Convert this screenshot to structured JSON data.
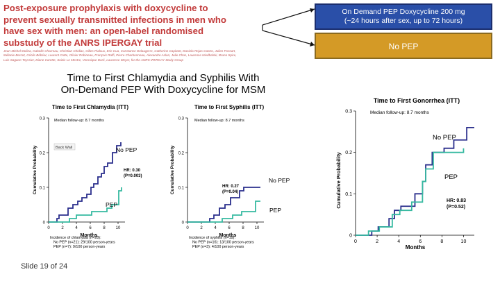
{
  "paper": {
    "title": "Post-exposure prophylaxis with doxycycline to prevent sexually transmitted infections in men who have sex with men: an open-label randomised substudy of the ANRS IPERGAY trial",
    "authors": "Jean-Michel Molina, Isabelle Charreau, Christian Chidiac, Gilles Pialoux, Eric Cua, Constance Delaugerre, Catherine Capitant, Daniela Rojas-Castro, Julien Fonsart, Mélanie Bercot, Cécile Bébéar, Laurent Cotte, Olivier Robineau, François Raffi, Pierre Charbonneau, Alexandre Aslan, Julie Chas, Laurence Niedbalski, Bruno Spire, Luis Sagaon-Teyssier, Diane Carette, Soizic Le Mestre, Veronique Doré, Laurence Meyer, for the ANRS IPERGAY Study Group"
  },
  "callouts": {
    "blue": [
      "On Demand PEP Doxycycline 200 mg",
      "(~24 hours after sex, up to 72 hours)"
    ],
    "gold": "No PEP"
  },
  "slide": {
    "title": [
      "Time to First Chlamydia and Syphilis With",
      "On-Demand PEP With Doxycycline for MSM"
    ],
    "footer": "Slide 19 of 24"
  },
  "colors": {
    "no_pep": "#2a2e8c",
    "pep": "#36b9a0",
    "title_red": "#c23a3a"
  },
  "chart_data": [
    {
      "type": "line",
      "title": "Time to First Chlamydia (ITT)",
      "subtitle": "Median follow-up: 8.7 months",
      "xlabel": "Months",
      "ylabel": "Cumulative Probability",
      "xlim": [
        0,
        11
      ],
      "ylim": [
        0,
        0.3
      ],
      "xticks": [
        "0",
        "2",
        "4",
        "6",
        "8",
        "10"
      ],
      "yticks": [
        "0",
        "0.1",
        "0.2",
        "0.3"
      ],
      "annotations": [
        "Back Wall"
      ],
      "hr_text": [
        "HR: 0.30",
        "(P=0.003)"
      ],
      "series": [
        {
          "name": "No PEP",
          "x": [
            0,
            1.2,
            1.5,
            2.2,
            2.8,
            3.5,
            4.2,
            4.8,
            5.5,
            6.1,
            6.5,
            7.1,
            7.6,
            8.0,
            8.5,
            9.2,
            9.8,
            10.4
          ],
          "y": [
            0,
            0.01,
            0.02,
            0.02,
            0.04,
            0.05,
            0.06,
            0.07,
            0.08,
            0.1,
            0.11,
            0.13,
            0.14,
            0.16,
            0.17,
            0.2,
            0.22,
            0.23
          ]
        },
        {
          "name": "PEP",
          "x": [
            0,
            2.2,
            3.0,
            4.0,
            5.5,
            6.2,
            8.0,
            8.4,
            9.1,
            10.1,
            10.5
          ],
          "y": [
            0,
            0,
            0.01,
            0.02,
            0.02,
            0.03,
            0.03,
            0.04,
            0.05,
            0.09,
            0.1
          ]
        }
      ],
      "incidence": [
        "Incidence of chlamydia (n=28):",
        "No PEP (n=21): 29/100 person-years",
        "PEP (n=7): 9/100 person-years"
      ]
    },
    {
      "type": "line",
      "title": "Time to First Syphilis (ITT)",
      "subtitle": "Median follow-up: 8.7 months",
      "xlabel": "Months",
      "ylabel": "Cumulative Probability",
      "xlim": [
        0,
        11
      ],
      "ylim": [
        0,
        0.3
      ],
      "xticks": [
        "0",
        "2",
        "4",
        "6",
        "8",
        "10"
      ],
      "yticks": [
        "0",
        "0.1",
        "0.2",
        "0.3"
      ],
      "hr_text": [
        "HR: 0.27",
        "(P=0.04)"
      ],
      "series": [
        {
          "name": "No PEP",
          "x": [
            0,
            3.2,
            3.8,
            4.6,
            5.4,
            6.2,
            7.5,
            8.1,
            10.5
          ],
          "y": [
            0,
            0.01,
            0.02,
            0.04,
            0.05,
            0.07,
            0.09,
            0.1,
            0.1
          ]
        },
        {
          "name": "PEP",
          "x": [
            0,
            5.0,
            6.5,
            7.8,
            9.8,
            10.5
          ],
          "y": [
            0,
            0.01,
            0.02,
            0.03,
            0.06,
            0.06
          ]
        }
      ],
      "incidence": [
        "Incidence of syphilis (n=19):",
        "No PEP (n=16): 13/100 person-years",
        "PEP (n=3): 4/100 person-years"
      ]
    },
    {
      "type": "line",
      "title": "Time to First Gonorrhea (ITT)",
      "subtitle": "Median follow-up: 8.7 months",
      "xlabel": "Months",
      "ylabel": "Cumulative Probability",
      "xlim": [
        0,
        11
      ],
      "ylim": [
        0,
        0.3
      ],
      "xticks": [
        "0",
        "2",
        "4",
        "6",
        "8",
        "10"
      ],
      "yticks": [
        "0",
        "0.1",
        "0.2",
        "0.3"
      ],
      "hr_text": [
        "HR: 0.83",
        "(P=0.52)"
      ],
      "series": [
        {
          "name": "No PEP",
          "x": [
            0,
            1.5,
            2.1,
            3.1,
            3.6,
            4.2,
            5.5,
            6.2,
            6.5,
            7.1,
            8.2,
            9.1,
            10.3,
            11
          ],
          "y": [
            0,
            0.01,
            0.02,
            0.04,
            0.06,
            0.07,
            0.1,
            0.13,
            0.17,
            0.2,
            0.21,
            0.23,
            0.26,
            0.26
          ]
        },
        {
          "name": "PEP",
          "x": [
            0,
            1.2,
            2.2,
            3.4,
            4.1,
            5.2,
            6.2,
            6.5,
            7.2,
            8.3,
            9.3,
            10.0
          ],
          "y": [
            0,
            0.01,
            0.02,
            0.05,
            0.06,
            0.08,
            0.13,
            0.16,
            0.2,
            0.2,
            0.2,
            0.21
          ]
        }
      ]
    }
  ]
}
